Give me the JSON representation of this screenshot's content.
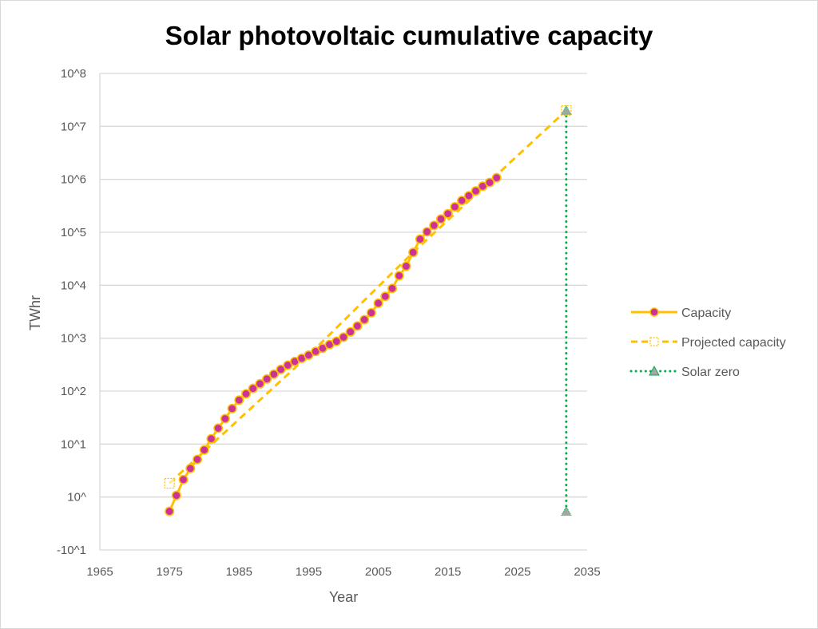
{
  "chart_data": {
    "type": "line",
    "title": "Solar photovoltaic cumulative capacity",
    "xlabel": "Year",
    "ylabel": "TWhr",
    "xlim": [
      1965,
      2035
    ],
    "ylim": [
      -1,
      8
    ],
    "x_ticks": [
      1965,
      1975,
      1985,
      1995,
      2005,
      2015,
      2025,
      2035
    ],
    "x_tick_labels": [
      "1965",
      "1975",
      "1985",
      "1995",
      "2005",
      "2015",
      "2025",
      "2035"
    ],
    "y_ticks": [
      -1,
      0,
      1,
      2,
      3,
      4,
      5,
      6,
      7,
      8
    ],
    "y_tick_labels": [
      "-10^1",
      "10^",
      "10^1",
      "10^2",
      "10^3",
      "10^4",
      "10^5",
      "10^6",
      "10^7",
      "10^8"
    ],
    "y_scale_note": "values are base-10 exponents",
    "grid": "horizontal",
    "legend_position": "right",
    "series": [
      {
        "name": "Capacity",
        "style": "solid-line-with-circle-markers",
        "line_color": "#FFC000",
        "marker_color": "#CC3399",
        "x": [
          1975,
          1976,
          1977,
          1978,
          1979,
          1980,
          1981,
          1982,
          1983,
          1984,
          1985,
          1986,
          1987,
          1988,
          1989,
          1990,
          1991,
          1992,
          1993,
          1994,
          1995,
          1996,
          1997,
          1998,
          1999,
          2000,
          2001,
          2002,
          2003,
          2004,
          2005,
          2006,
          2007,
          2008,
          2009,
          2010,
          2011,
          2012,
          2013,
          2014,
          2015,
          2016,
          2017,
          2018,
          2019,
          2020,
          2021,
          2022
        ],
        "values": [
          -0.27,
          0.03,
          0.33,
          0.54,
          0.71,
          0.89,
          1.1,
          1.3,
          1.48,
          1.67,
          1.83,
          1.95,
          2.05,
          2.14,
          2.23,
          2.32,
          2.41,
          2.49,
          2.56,
          2.62,
          2.68,
          2.75,
          2.81,
          2.88,
          2.94,
          3.02,
          3.12,
          3.23,
          3.35,
          3.48,
          3.66,
          3.79,
          3.94,
          4.18,
          4.36,
          4.62,
          4.87,
          5.01,
          5.13,
          5.25,
          5.35,
          5.48,
          5.6,
          5.69,
          5.78,
          5.87,
          5.94,
          6.03
        ]
      },
      {
        "name": "Projected capacity",
        "style": "dashed-line-with-square-markers",
        "line_color": "#FFC000",
        "x": [
          1975,
          1995,
          2010,
          2032
        ],
        "values": [
          0.26,
          2.68,
          4.62,
          7.3
        ],
        "marker_points": [
          0,
          3
        ]
      },
      {
        "name": "Solar zero",
        "style": "dotted-line-with-triangle-markers",
        "line_color": "#00B050",
        "marker_color": "#A5A5A5",
        "x": [
          2032,
          2032
        ],
        "values": [
          -0.27,
          7.3
        ]
      }
    ]
  }
}
